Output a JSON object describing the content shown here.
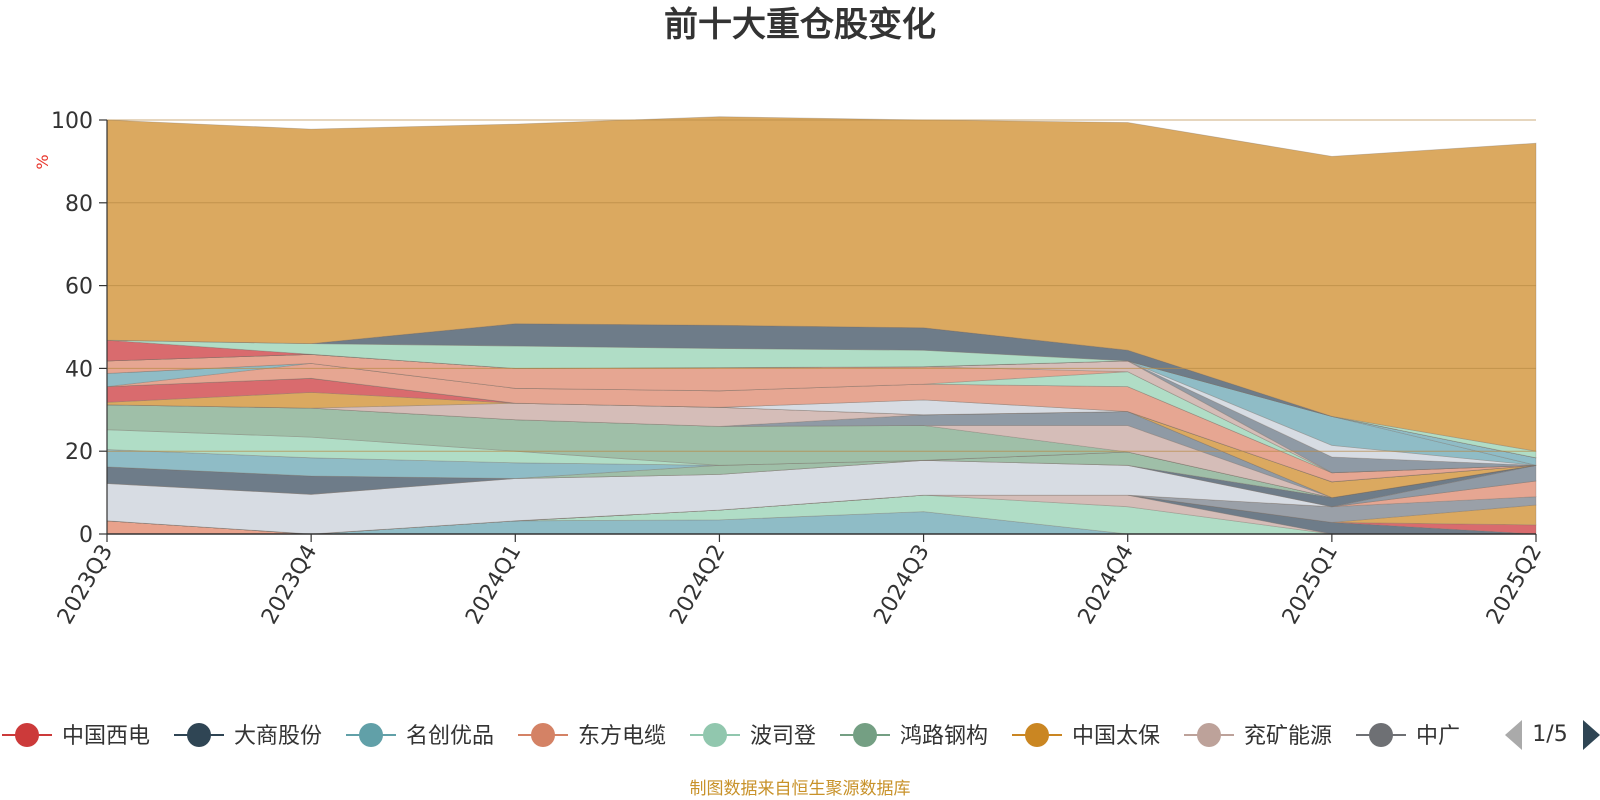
{
  "title": "前十大重仓股变化",
  "source_note": "制图数据来自恒生聚源数据库",
  "legend_pager": "1/5",
  "colors": {
    "unit": "#e8342a",
    "source": "#c8922a",
    "axis": "#333333",
    "grid": "#b88a45"
  },
  "chart_data": {
    "type": "area",
    "stacked": true,
    "title": "前十大重仓股变化",
    "ylabel": "%",
    "ylim": [
      0,
      100
    ],
    "yticks": [
      0,
      20,
      40,
      60,
      80,
      100
    ],
    "grid": true,
    "legend_position": "bottom",
    "x": [
      "2023Q3",
      "2023Q4",
      "2024Q1",
      "2024Q2",
      "2024Q3",
      "2024Q4",
      "2025Q1",
      "2025Q2"
    ],
    "series": [
      {
        "name": "",
        "color": "#e8a28c",
        "values": [
          3.2,
          0,
          0,
          0,
          0,
          0,
          0,
          0
        ]
      },
      {
        "name": "",
        "color": "#8fbcc6",
        "values": [
          0,
          0,
          3.2,
          3.4,
          5.4,
          0,
          0,
          0
        ]
      },
      {
        "name": "",
        "color": "#b0ddc6",
        "values": [
          0,
          0,
          0,
          2.4,
          4.0,
          6.6,
          0,
          0
        ]
      },
      {
        "name": "",
        "color": "#d5bdb8",
        "values": [
          0,
          0,
          0,
          0,
          0,
          2.8,
          0,
          0
        ]
      },
      {
        "name": "",
        "color": "#6e7c89",
        "values": [
          0,
          0,
          0,
          0,
          0,
          0,
          2.8,
          0
        ]
      },
      {
        "name": "中国西电",
        "color": "#d96b6e",
        "values": [
          0,
          0,
          0,
          0,
          0,
          0,
          0,
          2.2
        ]
      },
      {
        "name": "中国太保",
        "color": "#dba960",
        "values": [
          0,
          0,
          0,
          0,
          0,
          0,
          0,
          4.8
        ]
      },
      {
        "name": "",
        "color": "#9aa0a8",
        "values": [
          0,
          0,
          0,
          0,
          0,
          0,
          3.8,
          2.0
        ]
      },
      {
        "name": "",
        "color": "#e6a692",
        "values": [
          0,
          0,
          0,
          0,
          0,
          0,
          0,
          3.8
        ]
      },
      {
        "name": "",
        "color": "#d7dce3",
        "values": [
          9.0,
          9.6,
          10.2,
          8.6,
          8.4,
          7.2,
          0,
          0
        ]
      },
      {
        "name": "",
        "color": "#8f9aa5",
        "values": [
          0,
          0,
          0,
          0,
          0,
          0,
          0,
          3.8
        ]
      },
      {
        "name": "大商股份",
        "color": "#6e7c89",
        "values": [
          4.0,
          4.4,
          0,
          0,
          0,
          0,
          2.2,
          0
        ]
      },
      {
        "name": "鸿路钢构",
        "color": "#9fbfa8",
        "values": [
          0,
          0,
          0,
          2.2,
          0,
          3.2,
          0,
          0
        ]
      },
      {
        "name": "名创优品",
        "color": "#8fbcc6",
        "values": [
          4.2,
          4.4,
          3.8,
          0,
          0,
          0,
          0,
          0
        ]
      },
      {
        "name": "波司登",
        "color": "#b0ddc6",
        "values": [
          4.8,
          5.0,
          2.8,
          0,
          0,
          0,
          0,
          0
        ]
      },
      {
        "name": "鸿路钢构",
        "color": "#9fbfa8",
        "values": [
          6.0,
          7.0,
          7.6,
          9.4,
          8.4,
          0,
          0,
          0
        ]
      },
      {
        "name": "",
        "color": "#d5bdb8",
        "values": [
          0,
          0,
          0,
          0,
          0,
          6.4,
          0,
          0
        ]
      },
      {
        "name": "",
        "color": "#8f9aa5",
        "values": [
          0,
          0,
          0,
          0,
          2.6,
          3.4,
          0,
          0
        ]
      },
      {
        "name": "",
        "color": "#d5bdb8",
        "values": [
          0,
          0,
          4.0,
          4.6,
          0,
          0,
          0,
          0
        ]
      },
      {
        "name": "中国太保",
        "color": "#dba960",
        "values": [
          0.6,
          3.8,
          0,
          0,
          0,
          0,
          3.8,
          0
        ]
      },
      {
        "name": "中国西电",
        "color": "#d96b6e",
        "values": [
          3.8,
          3.4,
          0,
          0,
          0,
          0,
          0,
          0
        ]
      },
      {
        "name": "",
        "color": "#d7dce3",
        "values": [
          0,
          0,
          0,
          0,
          3.6,
          0,
          0,
          0
        ]
      },
      {
        "name": "",
        "color": "#6e7c89",
        "values": [
          0,
          0,
          0,
          0,
          0,
          0,
          0,
          0
        ]
      },
      {
        "name": "东方电缆",
        "color": "#e6a692",
        "values": [
          0,
          3.6,
          3.6,
          4.0,
          3.8,
          6.0,
          2.2,
          0
        ]
      },
      {
        "name": "名创优品",
        "color": "#8fbcc6",
        "values": [
          3.2,
          0,
          0,
          0,
          0,
          0,
          0,
          0
        ]
      },
      {
        "name": "波司登",
        "color": "#b0ddc6",
        "values": [
          0,
          0,
          0,
          0,
          0,
          3.6,
          0,
          0
        ]
      },
      {
        "name": "东方电缆",
        "color": "#e6a692",
        "values": [
          3.0,
          2.2,
          4.8,
          5.6,
          4.2,
          0,
          0,
          0
        ]
      },
      {
        "name": "",
        "color": "#d5bdb8",
        "values": [
          0,
          0,
          0,
          0,
          0,
          2.6,
          0,
          0
        ]
      },
      {
        "name": "",
        "color": "#8f9aa5",
        "values": [
          0,
          0,
          0,
          0,
          0,
          0,
          3.8,
          0
        ]
      },
      {
        "name": "",
        "color": "#d7dce3",
        "values": [
          0,
          0,
          0,
          0,
          0,
          0,
          2.8,
          0
        ]
      },
      {
        "name": "",
        "color": "#8fbcc6",
        "values": [
          0,
          0,
          0,
          0,
          0,
          0,
          7.0,
          0
        ]
      },
      {
        "name": "",
        "color": "#8fbcc6",
        "values": [
          0,
          0,
          0,
          0,
          0,
          0,
          0,
          1.8
        ]
      },
      {
        "name": "中国西电",
        "color": "#d96b6e",
        "values": [
          5.0,
          0,
          0,
          0,
          0,
          0,
          0,
          0
        ]
      },
      {
        "name": "",
        "color": "#b0ddc6",
        "values": [
          0,
          2.6,
          5.4,
          4.6,
          4.0,
          0,
          0,
          0
        ]
      },
      {
        "name": "",
        "color": "#6e7c89",
        "values": [
          0,
          0,
          5.4,
          5.6,
          5.4,
          2.6,
          0,
          0
        ]
      },
      {
        "name": "",
        "color": "#b0ddc6",
        "values": [
          0,
          0,
          0,
          0,
          0,
          0,
          0,
          1.6
        ]
      },
      {
        "name": "",
        "color": "#dba960",
        "values": [
          53.2,
          51.8,
          48.2,
          50.4,
          50.2,
          55.0,
          62.8,
          74.4
        ]
      }
    ],
    "legend": [
      {
        "name": "中国西电",
        "color": "#cc3a3a"
      },
      {
        "name": "大商股份",
        "color": "#2f4554"
      },
      {
        "name": "名创优品",
        "color": "#61a0a8"
      },
      {
        "name": "东方电缆",
        "color": "#d48265"
      },
      {
        "name": "波司登",
        "color": "#91c7ae"
      },
      {
        "name": "鸿路钢构",
        "color": "#749f83"
      },
      {
        "name": "中国太保",
        "color": "#ca8622"
      },
      {
        "name": "兖矿能源",
        "color": "#bda29a"
      },
      {
        "name": "中广",
        "color": "#6e7074"
      }
    ]
  }
}
